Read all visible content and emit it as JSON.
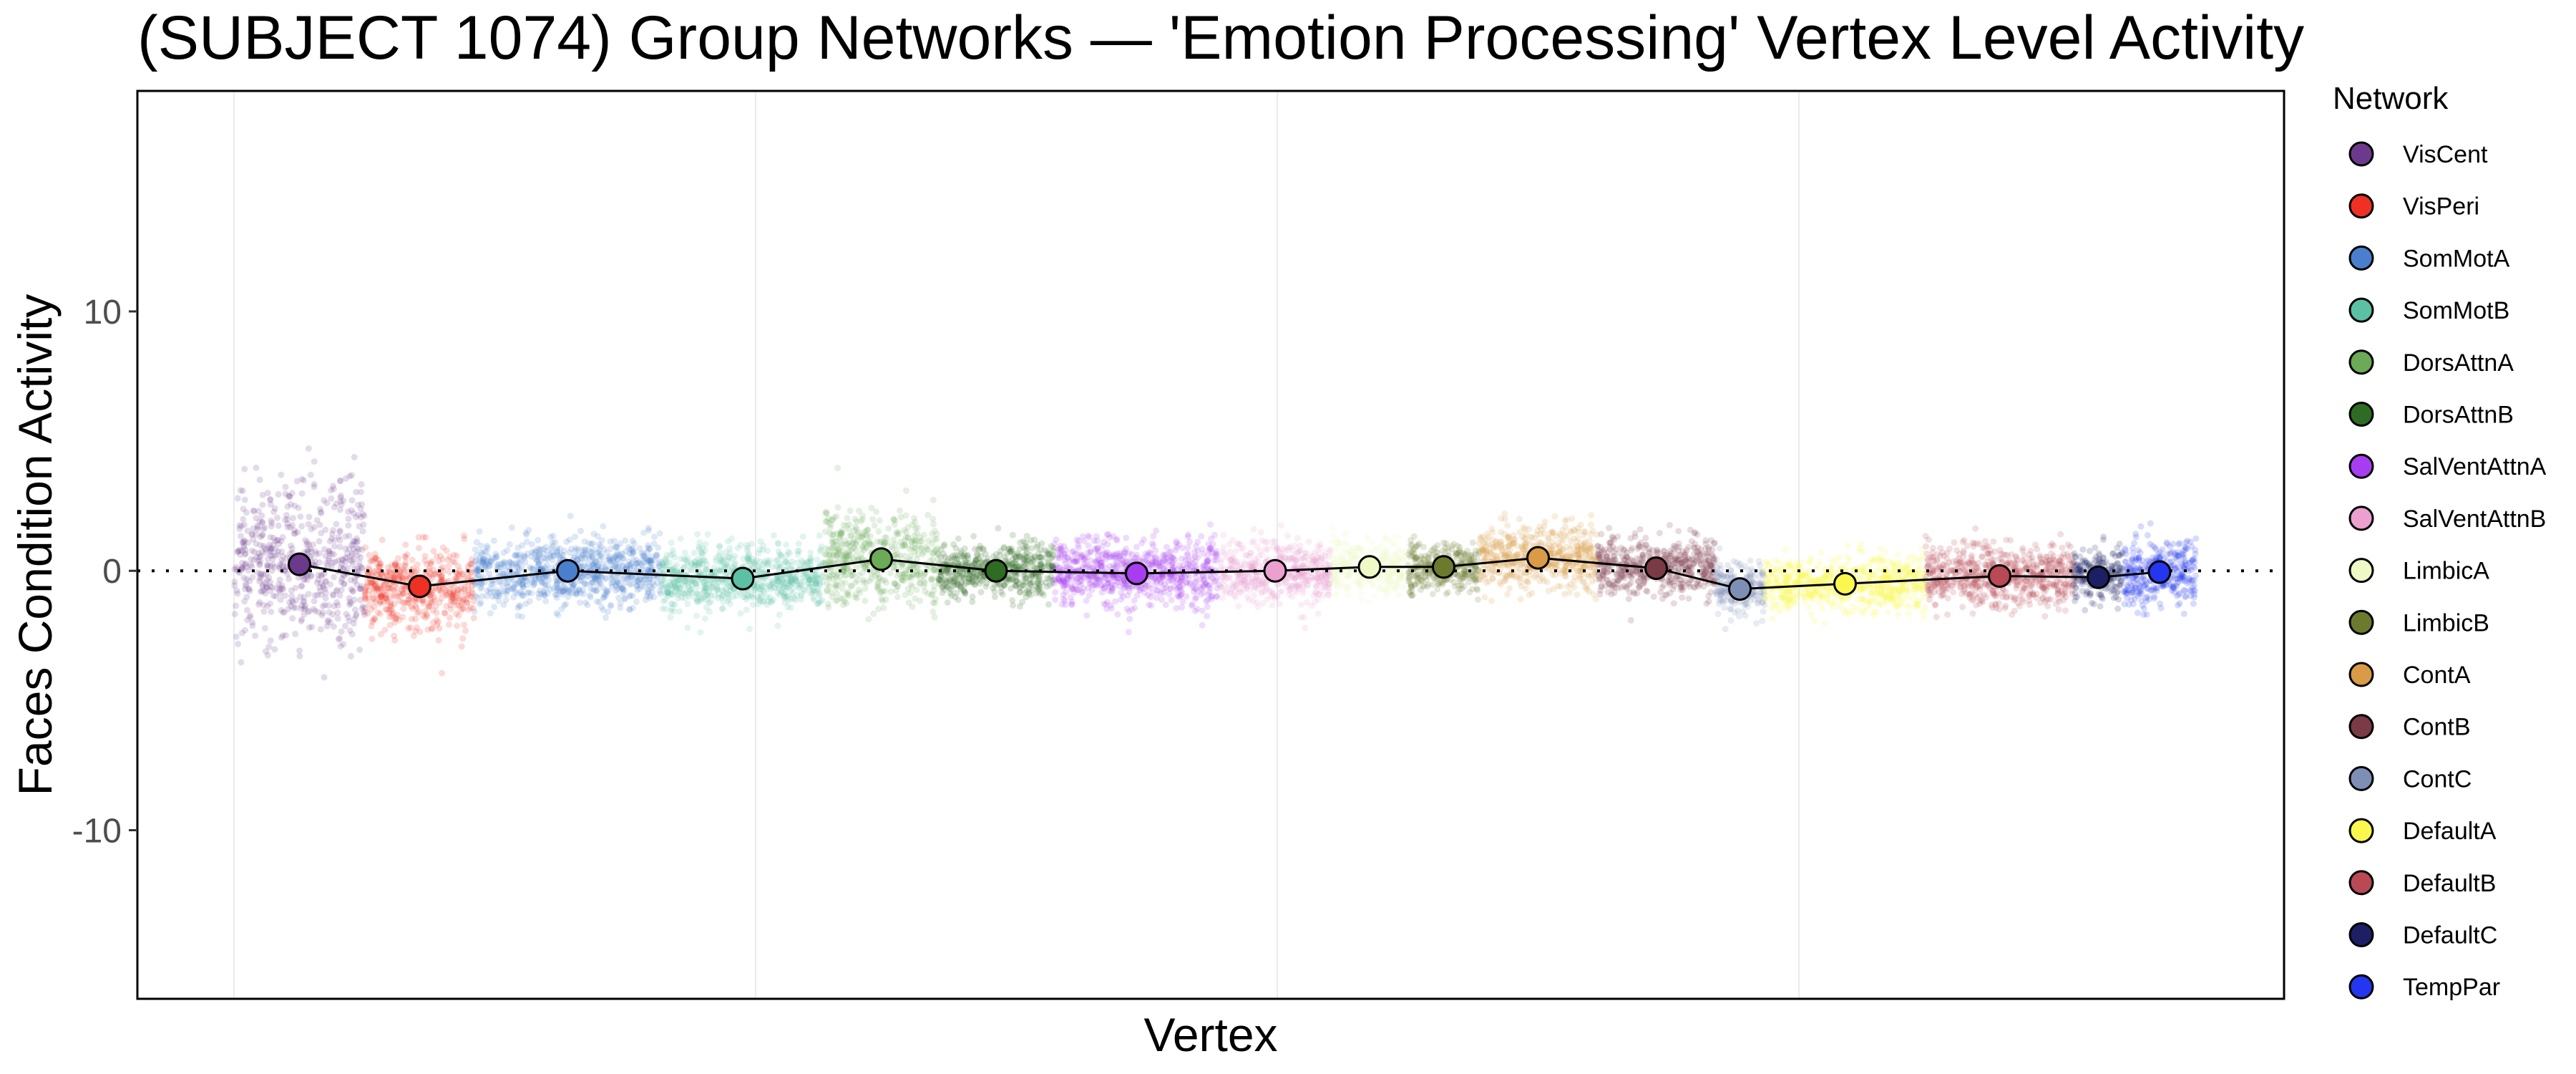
{
  "chart_data": {
    "type": "scatter",
    "title": "(SUBJECT 1074) Group Networks — 'Emotion Processing' Vertex Level Activity",
    "xlabel": "Vertex",
    "ylabel": "Faces Condition Activity",
    "ylim": [
      -16.5,
      18.5
    ],
    "yticks": [
      -10,
      0,
      10
    ],
    "reference_line_y": 0,
    "grid": "vertical-major",
    "legend_title": "Network",
    "legend_position": "right",
    "series": [
      {
        "name": "VisCent",
        "color": "#6C3A8C",
        "mean": 0.25,
        "spread": 3.0
      },
      {
        "name": "VisPeri",
        "color": "#EE3124",
        "mean": -0.6,
        "spread": 1.6
      },
      {
        "name": "SomMotA",
        "color": "#4A7FCE",
        "mean": 0.0,
        "spread": 1.3
      },
      {
        "name": "SomMotB",
        "color": "#5CC0A4",
        "mean": -0.3,
        "spread": 1.2
      },
      {
        "name": "DorsAttnA",
        "color": "#6BAA56",
        "mean": 0.45,
        "spread": 1.8
      },
      {
        "name": "DorsAttnB",
        "color": "#2E6B23",
        "mean": 0.0,
        "spread": 1.1
      },
      {
        "name": "SalVentAttnA",
        "color": "#A73DF0",
        "mean": -0.1,
        "spread": 1.3
      },
      {
        "name": "SalVentAttnB",
        "color": "#EBA0D0",
        "mean": 0.0,
        "spread": 1.2
      },
      {
        "name": "LimbicA",
        "color": "#EFF9C5",
        "mean": 0.15,
        "spread": 1.0
      },
      {
        "name": "LimbicB",
        "color": "#6C7A2E",
        "mean": 0.15,
        "spread": 0.9
      },
      {
        "name": "ContA",
        "color": "#D99B45",
        "mean": 0.5,
        "spread": 1.2
      },
      {
        "name": "ContB",
        "color": "#7A3A46",
        "mean": 0.1,
        "spread": 1.1
      },
      {
        "name": "ContC",
        "color": "#7D8FB5",
        "mean": -0.7,
        "spread": 1.0
      },
      {
        "name": "DefaultA",
        "color": "#FAF84E",
        "mean": -0.5,
        "spread": 1.0
      },
      {
        "name": "DefaultB",
        "color": "#B84955",
        "mean": -0.2,
        "spread": 1.2
      },
      {
        "name": "DefaultC",
        "color": "#1C1F63",
        "mean": -0.25,
        "spread": 1.0
      },
      {
        "name": "TempPar",
        "color": "#2436F0",
        "mean": -0.05,
        "spread": 1.3
      }
    ]
  }
}
